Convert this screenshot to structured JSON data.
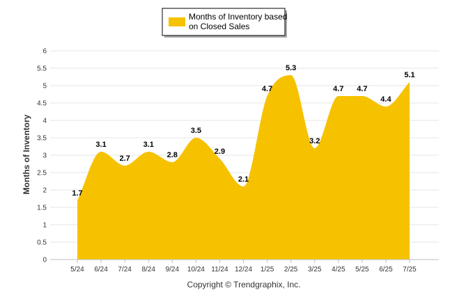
{
  "chart_data": {
    "type": "area",
    "categories": [
      "5/24",
      "6/24",
      "7/24",
      "8/24",
      "9/24",
      "10/24",
      "11/24",
      "12/24",
      "1/25",
      "2/25",
      "3/25",
      "4/25",
      "5/25",
      "6/25",
      "7/25"
    ],
    "series": [
      {
        "name": "Months of Inventory based on Closed Sales",
        "values": [
          1.7,
          3.1,
          2.7,
          3.1,
          2.8,
          3.5,
          2.9,
          2.1,
          4.7,
          5.3,
          3.2,
          4.7,
          4.7,
          4.4,
          5.1
        ],
        "color": "#F6C200"
      }
    ],
    "legend_lines": [
      "Months of Inventory based",
      "on Closed Sales"
    ],
    "legend_position": "top-center",
    "ylabel": "Months of Inventory",
    "xlabel": "",
    "ylim": [
      0,
      6
    ],
    "yticks": [
      "0",
      "0.5",
      "1",
      "1.5",
      "2",
      "2.5",
      "3",
      "3.5",
      "4",
      "4.5",
      "5",
      "5.5",
      "6"
    ],
    "data_labels": [
      "1.7",
      "3.1",
      "2.7",
      "3.1",
      "2.8",
      "3.5",
      "2.9",
      "2.1",
      "4.7",
      "5.3",
      "3.2",
      "4.7",
      "4.7",
      "4.4",
      "5.1"
    ],
    "grid": true,
    "copyright": "Copyright © Trendgraphix, Inc."
  }
}
